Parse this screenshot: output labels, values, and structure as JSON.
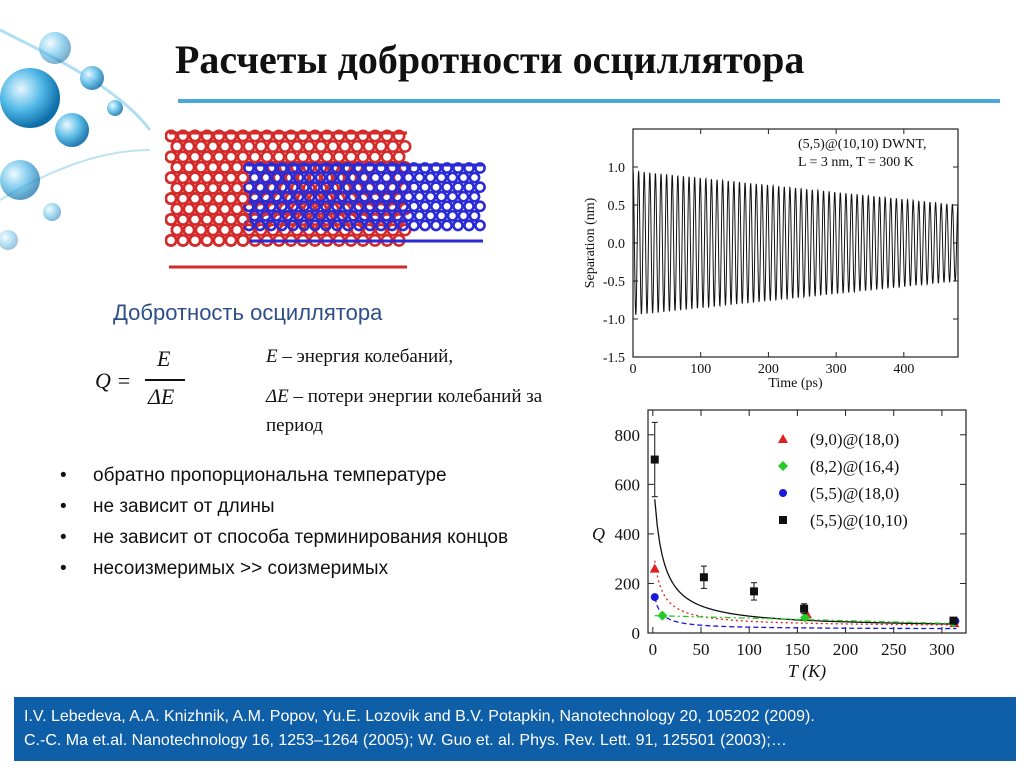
{
  "slide": {
    "title": "Расчеты добротности осциллятора",
    "subtitle": "Добротность осциллятора",
    "formula": {
      "lhs": "Q =",
      "numerator": "E",
      "denominator": "ΔE"
    },
    "definitions": [
      {
        "symbol": "E",
        "text": " – энергия колебаний,"
      },
      {
        "symbol": "ΔE",
        "text": " – потери энергии колебаний за период"
      }
    ],
    "bullets": [
      "обратно пропорциональна температуре",
      "не зависит от длины",
      "не зависит от способа терминирования концов",
      "несоизмеримых >> соизмеримых"
    ],
    "references": [
      "I.V. Lebedeva, A.A. Knizhnik, A.M. Popov, Yu.E. Lozovik and B.V. Potapkin, Nanotechnology 20, 105202 (2009).",
      "C.-C. Ma et.al. Nanotechnology 16, 1253–1264 (2005); W. Guo  et. al. Phys. Rev. Lett. 91, 125501 (2003);…"
    ],
    "bullet_symbol": "•"
  },
  "colors": {
    "accent_rule": "#4aa8d8",
    "subtitle": "#2e4e8a",
    "footer_bg": "#0f5ea8",
    "tube_outer": "#d42a2a",
    "tube_inner": "#2a2ad6"
  },
  "chart_data": [
    {
      "type": "line",
      "annotation": [
        "(5,5)@(10,10) DWNT,",
        "L = 3 nm, T = 300 K"
      ],
      "xlabel": "Time (ps)",
      "ylabel": "Separation (nm)",
      "xlim": [
        0,
        480
      ],
      "ylim": [
        -1.5,
        1.5
      ],
      "xticks": [
        0,
        100,
        200,
        300,
        400
      ],
      "yticks": [
        1.0,
        0.5,
        0.0,
        -0.5,
        -1.0,
        -1.5
      ],
      "ytick_labels": [
        "1.0",
        "0.5",
        "0.0",
        "-0.5",
        "-1.0",
        "-1.5"
      ],
      "oscillation": {
        "periods": 58,
        "amplitude_start": 0.95,
        "amplitude_end": 0.5
      }
    },
    {
      "type": "scatter",
      "xlabel": "T (K)",
      "ylabel": "Q",
      "xlim": [
        -5,
        325
      ],
      "ylim": [
        0,
        900
      ],
      "xticks": [
        0,
        50,
        100,
        150,
        200,
        250,
        300
      ],
      "yticks": [
        0,
        200,
        400,
        600,
        800
      ],
      "series": [
        {
          "name": "(9,0)@(18,0)",
          "marker": "triangle",
          "color": "#e02020",
          "x": [
            2,
            160,
            313
          ],
          "y": [
            260,
            75,
            40
          ]
        },
        {
          "name": "(8,2)@(16,4)",
          "marker": "diamond",
          "color": "#22cc22",
          "x": [
            10,
            158,
            312
          ],
          "y": [
            70,
            62,
            42
          ]
        },
        {
          "name": "(5,5)@(18,0)",
          "marker": "circle",
          "color": "#1a1ad6",
          "x": [
            2,
            157,
            314
          ],
          "y": [
            145,
            100,
            48
          ]
        },
        {
          "name": "(5,5)@(10,10)",
          "marker": "square",
          "color": "#111111",
          "x": [
            2,
            53,
            105,
            157,
            312
          ],
          "y": [
            700,
            225,
            168,
            98,
            50
          ],
          "err": [
            150,
            45,
            35,
            20,
            10
          ]
        }
      ]
    }
  ]
}
